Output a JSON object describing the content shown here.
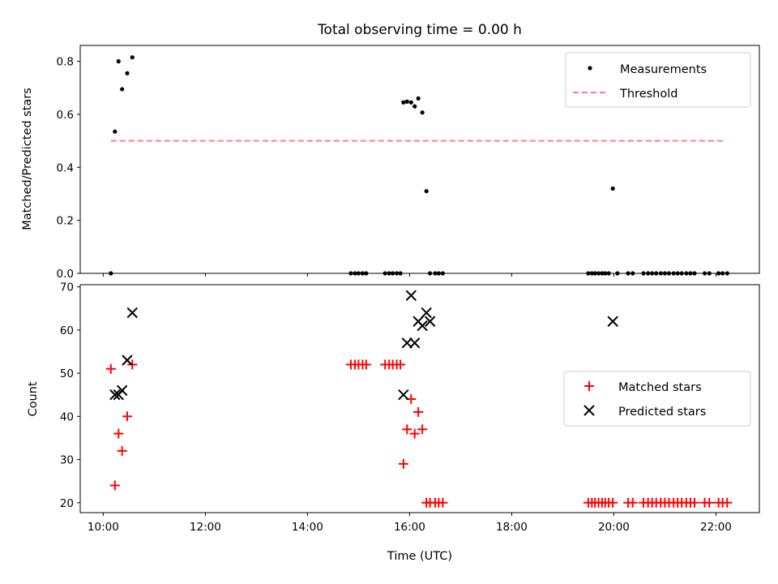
{
  "figure": {
    "title": "Total observing time = 0.00 h",
    "xlabel": "Time (UTC)"
  },
  "chart_data": [
    {
      "type": "scatter",
      "ylabel": "Matched/Predicted stars",
      "xlim": [
        9.55,
        22.85
      ],
      "ylim": [
        0,
        0.86
      ],
      "yticks": [
        0.0,
        0.2,
        0.4,
        0.6,
        0.8
      ],
      "xticks": [
        "10:00",
        "12:00",
        "14:00",
        "16:00",
        "18:00",
        "20:00",
        "22:00"
      ],
      "show_x_tick_labels": false,
      "grid": false,
      "legend": "top-right",
      "series": [
        {
          "name": "Measurements",
          "kind": "points",
          "color": "#000000",
          "x": [
            10.15,
            10.23,
            10.3,
            10.37,
            10.47,
            10.57,
            14.85,
            14.93,
            15.0,
            15.08,
            15.15,
            15.52,
            15.6,
            15.67,
            15.75,
            15.82,
            15.88,
            15.95,
            16.03,
            16.1,
            16.17,
            16.25,
            16.33,
            16.4,
            16.5,
            16.57,
            16.65,
            19.5,
            19.57,
            19.63,
            19.7,
            19.77,
            19.83,
            19.9,
            19.98,
            20.07,
            20.28,
            20.37,
            20.58,
            20.67,
            20.75,
            20.83,
            20.92,
            21.0,
            21.08,
            21.17,
            21.25,
            21.33,
            21.42,
            21.5,
            21.58,
            21.78,
            21.87,
            22.05,
            22.13,
            22.22
          ],
          "y": [
            0.0,
            0.535,
            0.8,
            0.695,
            0.755,
            0.815,
            0.0,
            0.0,
            0.0,
            0.0,
            0.0,
            0.0,
            0.0,
            0.0,
            0.0,
            0.0,
            0.645,
            0.648,
            0.645,
            0.63,
            0.66,
            0.607,
            0.31,
            0.0,
            0.0,
            0.0,
            0.0,
            0.0,
            0.0,
            0.0,
            0.0,
            0.0,
            0.0,
            0.0,
            0.32,
            0.0,
            0.0,
            0.0,
            0.0,
            0.0,
            0.0,
            0.0,
            0.0,
            0.0,
            0.0,
            0.0,
            0.0,
            0.0,
            0.0,
            0.0,
            0.0,
            0.0,
            0.0,
            0.0,
            0.0,
            0.0
          ]
        },
        {
          "name": "Threshold",
          "kind": "dashed-line",
          "color": "#ff7f7f",
          "x": [
            10.15,
            22.15
          ],
          "y": [
            0.5,
            0.5
          ]
        }
      ]
    },
    {
      "type": "scatter",
      "ylabel": "Count",
      "xlim": [
        9.55,
        22.85
      ],
      "ylim": [
        17.7,
        70.5
      ],
      "yticks": [
        20,
        30,
        40,
        50,
        60,
        70
      ],
      "xticks": [
        "10:00",
        "12:00",
        "14:00",
        "16:00",
        "18:00",
        "20:00",
        "22:00"
      ],
      "show_x_tick_labels": true,
      "grid": false,
      "legend": "center-right",
      "series": [
        {
          "name": "Matched stars",
          "marker": "plus",
          "color": "#ff0000",
          "x": [
            10.15,
            10.23,
            10.3,
            10.37,
            10.47,
            10.57,
            14.85,
            14.93,
            15.0,
            15.08,
            15.15,
            15.52,
            15.6,
            15.67,
            15.75,
            15.82,
            15.88,
            15.95,
            16.03,
            16.1,
            16.17,
            16.25,
            16.33,
            16.4,
            16.5,
            16.57,
            16.65,
            19.5,
            19.57,
            19.63,
            19.7,
            19.77,
            19.83,
            19.9,
            19.98,
            20.28,
            20.37,
            20.58,
            20.67,
            20.75,
            20.83,
            20.92,
            21.0,
            21.08,
            21.17,
            21.25,
            21.33,
            21.42,
            21.5,
            21.58,
            21.78,
            21.87,
            22.05,
            22.13,
            22.22
          ],
          "y": [
            51,
            24,
            36,
            32,
            40,
            52,
            52,
            52,
            52,
            52,
            52,
            52,
            52,
            52,
            52,
            52,
            29,
            37,
            44,
            36,
            41,
            37,
            20,
            20,
            20,
            20,
            20,
            20,
            20,
            20,
            20,
            20,
            20,
            20,
            20,
            20,
            20,
            20,
            20,
            20,
            20,
            20,
            20,
            20,
            20,
            20,
            20,
            20,
            20,
            20,
            20,
            20,
            20,
            20,
            20
          ]
        },
        {
          "name": "Predicted stars",
          "marker": "x",
          "color": "#000000",
          "x": [
            10.23,
            10.3,
            10.37,
            10.47,
            10.57,
            15.88,
            15.95,
            16.03,
            16.1,
            16.17,
            16.25,
            16.33,
            16.4,
            19.98
          ],
          "y": [
            45,
            45,
            46,
            53,
            64,
            45,
            57,
            68,
            57,
            62,
            61,
            64,
            62,
            62
          ]
        }
      ]
    }
  ]
}
